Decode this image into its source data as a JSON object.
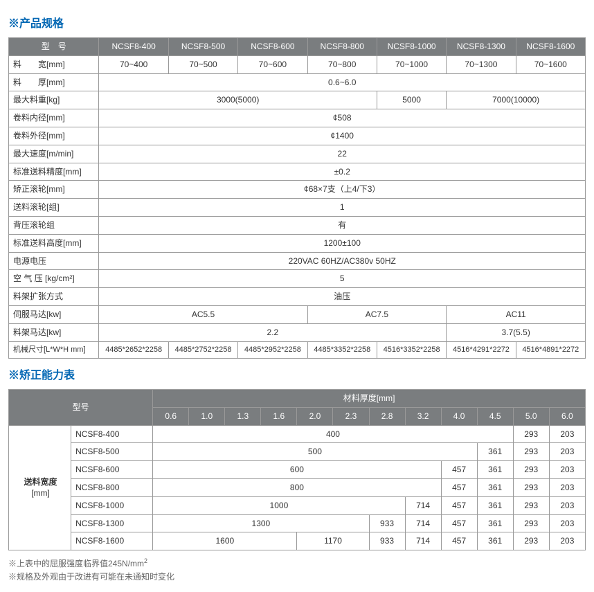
{
  "section1": {
    "title": "※产品规格"
  },
  "spec": {
    "header": {
      "label": "型　号",
      "models": [
        "NCSF8-400",
        "NCSF8-500",
        "NCSF8-600",
        "NCSF8-800",
        "NCSF8-1000",
        "NCSF8-1300",
        "NCSF8-1600"
      ]
    },
    "row_width": {
      "label": "料　　宽[mm]",
      "vals": [
        "70~400",
        "70~500",
        "70~600",
        "70~800",
        "70~1000",
        "70~1300",
        "70~1600"
      ]
    },
    "row_thick": {
      "label": "料　　厚[mm]",
      "val": "0.6~6.0"
    },
    "row_maxwt": {
      "label": "最大料重[kg]",
      "v1": "3000(5000)",
      "v2": "5000",
      "v3": "7000(10000)"
    },
    "row_innerd": {
      "label": "卷料内径[mm]",
      "val": "¢508"
    },
    "row_outerd": {
      "label": "卷料外径[mm]",
      "val": "¢1400"
    },
    "row_maxspd": {
      "label": "最大速度[m/min]",
      "val": "22"
    },
    "row_prec": {
      "label": "标准送料精度[mm]",
      "val": "±0.2"
    },
    "row_level": {
      "label": "矫正滚轮[mm]",
      "val": "¢68×7支（上4/下3）"
    },
    "row_feedr": {
      "label": "送料滚轮[组]",
      "val": "1"
    },
    "row_backr": {
      "label": "背压滚轮组",
      "val": "有"
    },
    "row_feedh": {
      "label": "标准送料高度[mm]",
      "val": "1200±100"
    },
    "row_power": {
      "label": "电源电压",
      "val": "220VAC 60HZ/AC380v 50HZ"
    },
    "row_air": {
      "label": "空 气 压 [kg/cm²]",
      "val": "5"
    },
    "row_expand": {
      "label": "料架扩张方式",
      "val": "油压"
    },
    "row_servo": {
      "label": "伺服马达[kw]",
      "v1": "AC5.5",
      "v2": "AC7.5",
      "v3": "AC11"
    },
    "row_rackm": {
      "label": "料架马达[kw]",
      "v1": "2.2",
      "v2": "3.7(5.5)"
    },
    "row_dim": {
      "label": "机械尺寸[L*W*H mm]",
      "vals": [
        "4485*2652*2258",
        "4485*2752*2258",
        "4485*2952*2258",
        "4485*3352*2258",
        "4516*3352*2258",
        "4516*4291*2272",
        "4516*4891*2272"
      ]
    }
  },
  "section2": {
    "title": "※矫正能力表"
  },
  "cap": {
    "model_label": "型号",
    "thick_label": "材料厚度[mm]",
    "feed_width_label": "送料宽度",
    "feed_width_unit": "[mm]",
    "thicknesses": [
      "0.6",
      "1.0",
      "1.3",
      "1.6",
      "2.0",
      "2.3",
      "2.8",
      "3.2",
      "4.0",
      "4.5",
      "5.0",
      "6.0"
    ],
    "rows": [
      {
        "model": "NCSF8-400",
        "span": 10,
        "full": "400",
        "rest": [
          "293",
          "203"
        ]
      },
      {
        "model": "NCSF8-500",
        "span": 9,
        "full": "500",
        "rest": [
          "361",
          "293",
          "203"
        ]
      },
      {
        "model": "NCSF8-600",
        "span": 8,
        "full": "600",
        "rest": [
          "457",
          "361",
          "293",
          "203"
        ]
      },
      {
        "model": "NCSF8-800",
        "span": 8,
        "full": "800",
        "rest": [
          "457",
          "361",
          "293",
          "203"
        ]
      },
      {
        "model": "NCSF8-1000",
        "span": 7,
        "full": "1000",
        "rest": [
          "714",
          "457",
          "361",
          "293",
          "203"
        ]
      },
      {
        "model": "NCSF8-1300",
        "span": 6,
        "full": "1300",
        "rest": [
          "933",
          "714",
          "457",
          "361",
          "293",
          "203"
        ]
      },
      {
        "model": "NCSF8-1600",
        "span": 4,
        "full": "1600",
        "mid_span": 2,
        "mid": "1170",
        "rest": [
          "933",
          "714",
          "457",
          "361",
          "293",
          "203"
        ]
      }
    ]
  },
  "footnotes": {
    "f1_a": "※上表中的屈服强度临界值245N/mm",
    "f1_b": "2",
    "f2": "※规格及外观由于改进有可能在未通知时变化"
  }
}
